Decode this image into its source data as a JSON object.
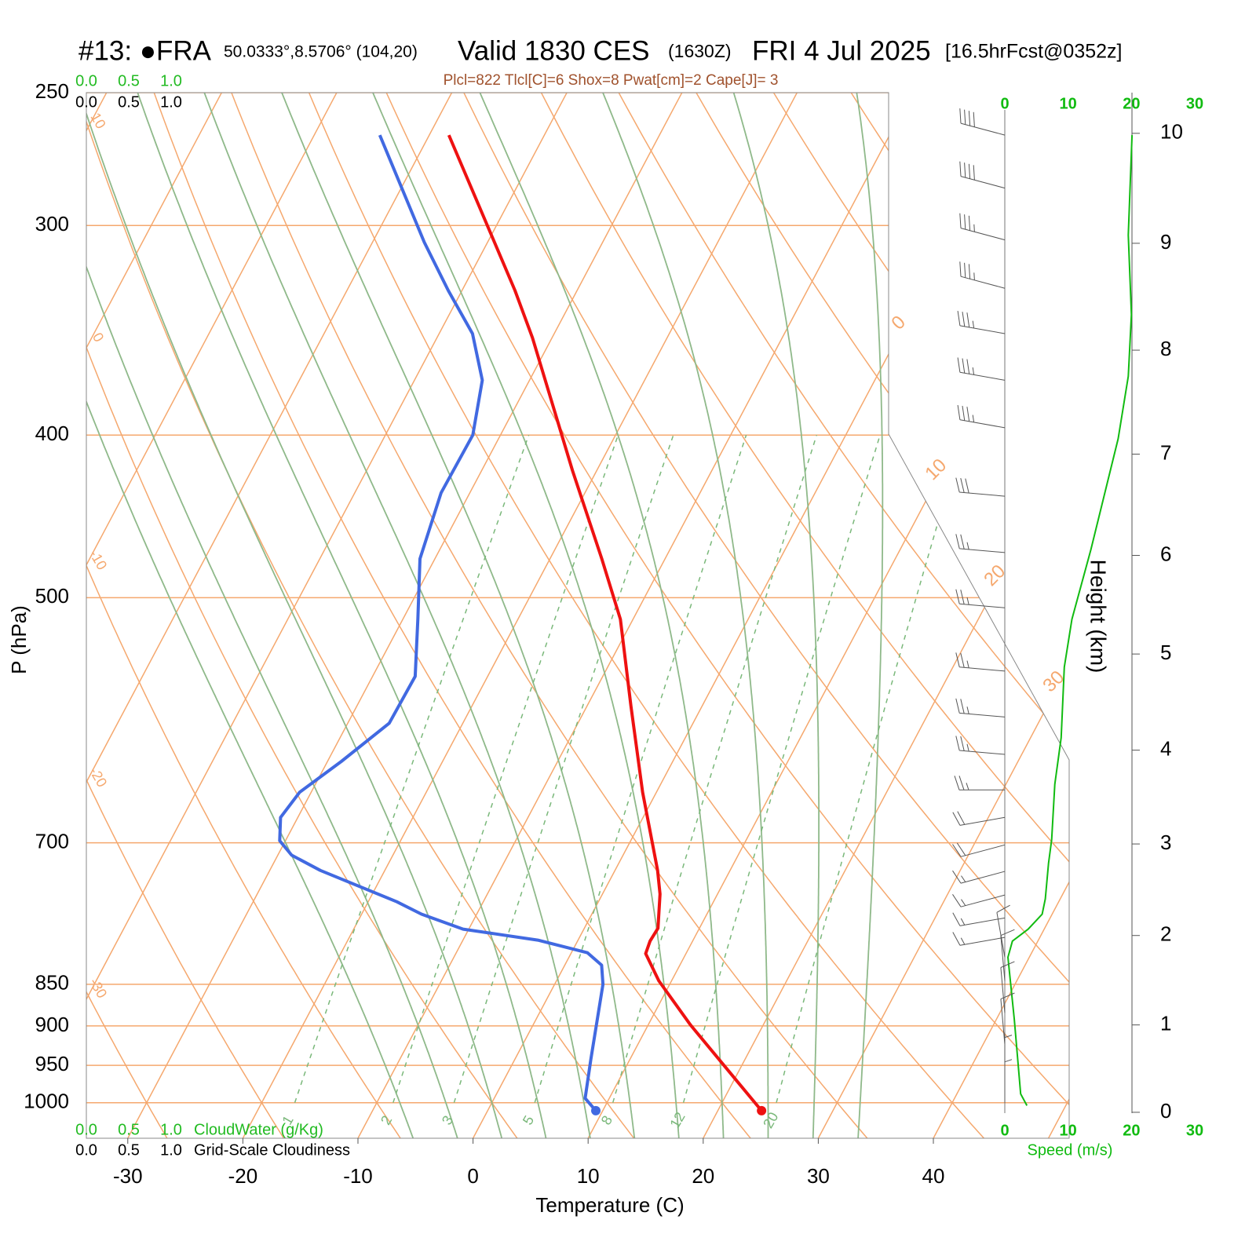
{
  "chart_data": {
    "type": "skewt",
    "title_parts": [
      "#13: ●FRA",
      "50.0333°,8.5706° (104,20)",
      "Valid 1830 CES",
      "(1630Z)",
      "FRI 4 Jul 2025",
      "[16.5hrFcst@0352z]"
    ],
    "subtitle": "Plcl=822 Tlcl[C]=6 Shox=8 Pwat[cm]=2 Cape[J]= 3",
    "ylabel": "P (hPa)",
    "xlabel": "Temperature (C)",
    "ylim": [
      1050,
      250
    ],
    "yticks": [
      250,
      300,
      400,
      500,
      700,
      850,
      900,
      950,
      1000
    ],
    "xlim": [
      -33.6,
      51.8
    ],
    "xticks": [
      -30,
      -20,
      -10,
      0,
      10,
      20,
      30,
      40
    ],
    "series": [
      {
        "color": "#ee1111",
        "p": [
          1011,
          973,
          899,
          846,
          815,
          801,
          787,
          751,
          727,
          653,
          580,
          515,
          474,
          420,
          350,
          328,
          307,
          265
        ],
        "values": [
          23.8,
          20.5,
          13.7,
          8.9,
          6.5,
          6.3,
          6.4,
          5.0,
          3.7,
          -1.2,
          -6.2,
          -11.1,
          -15.5,
          -22.1,
          -31.7,
          -35.4,
          -39.4,
          -48.3
        ]
      },
      {
        "color": "#4169e1",
        "p": [
          1011,
          994,
          942,
          850,
          828,
          814,
          800,
          788,
          772,
          759,
          727,
          712,
          698,
          676,
          653,
          626,
          594,
          557,
          515,
          474,
          433,
          400,
          371,
          348,
          328,
          307,
          265
        ],
        "values": [
          9.4,
          7.9,
          6.6,
          4.2,
          3.2,
          1.4,
          -3.5,
          -10.5,
          -14.8,
          -17.5,
          -25.6,
          -28.8,
          -30.5,
          -31.5,
          -31.0,
          -28.8,
          -26.4,
          -26.3,
          -28.7,
          -31.3,
          -32.5,
          -32.4,
          -34.1,
          -37.1,
          -41.2,
          -45.5,
          -54.3
        ]
      }
    ],
    "isotherms": [
      -110,
      -100,
      -90,
      -80,
      -70,
      -60,
      -50,
      -40,
      -30,
      -20,
      -10,
      0,
      10,
      20,
      30,
      40,
      50
    ],
    "isotherm_color": "#f5a86e",
    "dry_adiabats": [
      -30,
      -20,
      -10,
      0,
      10,
      20,
      30,
      40,
      50,
      60,
      70,
      80,
      90,
      100,
      110,
      120,
      130,
      140,
      150,
      160,
      170
    ],
    "moist_adiabats": [
      -8,
      -4,
      0,
      4,
      8,
      12,
      16,
      20,
      24,
      28,
      32
    ],
    "moist_color": "#8fb98a",
    "mixing_ratios": [
      1,
      2,
      3,
      5,
      8,
      12,
      20
    ],
    "mixing_color": "#7ab87a",
    "cloud_water": {
      "label": "CloudWater (g/Kg)",
      "color": "#22bb22",
      "xlim": [
        0,
        1
      ],
      "ticks": [
        {
          "value": 0,
          "label": "0.0"
        },
        {
          "value": 0.5,
          "label": "0.5"
        },
        {
          "value": 1,
          "label": "1.0"
        }
      ]
    },
    "cloudiness": {
      "label": "Grid-Scale Cloudiness",
      "color": "#000000",
      "xlim": [
        0,
        1
      ],
      "ticks": [
        {
          "value": 0,
          "label": "0.0"
        },
        {
          "value": 0.5,
          "label": "0.5"
        },
        {
          "value": 1,
          "label": "1.0"
        }
      ]
    },
    "wind_speed": {
      "xlabel": "Speed (m/s)",
      "color": "#11bb11",
      "xlim": [
        0,
        30
      ],
      "xticks": [
        0,
        10,
        20,
        30
      ],
      "p": [
        1004,
        988,
        892,
        819,
        801,
        788,
        772,
        756,
        720,
        697,
        646,
        606,
        550,
        515,
        468,
        402,
        369,
        339,
        304,
        265
      ],
      "values": [
        3.5,
        2.5,
        1.5,
        0.5,
        1.2,
        3.7,
        5.9,
        6.4,
        6.9,
        7.4,
        7.9,
        8.9,
        9.4,
        10.6,
        13.6,
        17.9,
        19.5,
        20,
        19.5,
        20.1
      ]
    },
    "height": {
      "label": "Height (km)",
      "ticks": [
        0,
        1,
        2,
        3,
        4,
        5,
        6,
        7,
        8,
        9,
        10
      ]
    },
    "wind_barbs": {
      "color": "#555555",
      "p": [
        265,
        285,
        306,
        327,
        348,
        371,
        396,
        435,
        470,
        507,
        553,
        589,
        620,
        651,
        676,
        702,
        728,
        752,
        776,
        797,
        819,
        846,
        884,
        923,
        967,
        1000
      ],
      "speed": [
        40,
        40,
        35,
        35,
        35,
        35,
        35,
        30,
        25,
        25,
        25,
        25,
        25,
        25,
        20,
        20,
        15,
        15,
        15,
        15,
        10,
        10,
        10,
        10,
        5,
        5
      ],
      "direction": [
        285,
        285,
        285,
        285,
        280,
        280,
        280,
        275,
        275,
        275,
        275,
        275,
        275,
        270,
        260,
        255,
        255,
        255,
        260,
        260,
        350,
        355,
        355,
        355,
        0,
        0
      ]
    }
  }
}
